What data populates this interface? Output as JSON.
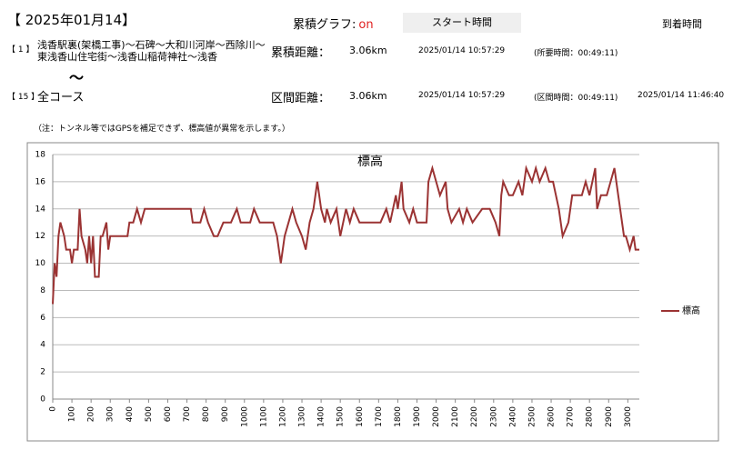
{
  "header": {
    "date": "【 2025年01月14】",
    "graph_label": "累積グラフ:",
    "graph_state": "on",
    "start_label": "スタート時間",
    "arrival_label": "到着時間"
  },
  "rows": [
    {
      "index": "【 1 】",
      "route": "浅香駅裏(架橋工事)～石碑～大和川河岸～西除川～東浅香山住宅街～浅香山稲荷神社～浅香",
      "distance_label": "累積距離：",
      "distance": "3.06km",
      "start": "2025/01/14 10:57:29",
      "duration": "(所要時間：00:49:11)"
    },
    {
      "index": "【 15 】",
      "route": "全コース",
      "distance_label": "区間距離：",
      "distance": "3.06km",
      "start": "2025/01/14 10:57:29",
      "duration": "(区間時間：00:49:11)",
      "arrival": "2025/01/14 11:46:40"
    }
  ],
  "separator": "～",
  "note": "（注：トンネル等ではGPSを補足できず、標高値が異常を示します。）",
  "chart_data": {
    "type": "line",
    "title": "標高",
    "x": [
      0,
      10,
      20,
      30,
      40,
      60,
      70,
      90,
      100,
      110,
      130,
      140,
      150,
      170,
      180,
      190,
      200,
      210,
      220,
      240,
      250,
      260,
      280,
      290,
      300,
      390,
      400,
      420,
      440,
      460,
      480,
      510,
      580,
      670,
      720,
      730,
      770,
      790,
      810,
      840,
      860,
      890,
      930,
      960,
      980,
      1030,
      1050,
      1080,
      1120,
      1150,
      1170,
      1190,
      1210,
      1230,
      1250,
      1270,
      1300,
      1320,
      1340,
      1360,
      1380,
      1400,
      1420,
      1430,
      1450,
      1480,
      1500,
      1530,
      1550,
      1570,
      1600,
      1710,
      1740,
      1760,
      1790,
      1800,
      1820,
      1830,
      1860,
      1880,
      1900,
      1950,
      1960,
      1980,
      2000,
      2020,
      2050,
      2060,
      2080,
      2120,
      2140,
      2160,
      2190,
      2240,
      2280,
      2310,
      2330,
      2340,
      2350,
      2380,
      2400,
      2430,
      2450,
      2470,
      2500,
      2520,
      2540,
      2570,
      2590,
      2610,
      2640,
      2660,
      2690,
      2710,
      2760,
      2780,
      2800,
      2830,
      2840,
      2860,
      2890,
      2910,
      2930,
      2950,
      2970,
      2980,
      2990,
      3010,
      3030,
      3040,
      3060
    ],
    "series": [
      {
        "name": "標高",
        "color": "#9b3333",
        "values": [
          7,
          10,
          9,
          12,
          13,
          12,
          11,
          11,
          10,
          11,
          11,
          14,
          12,
          11,
          10,
          12,
          10,
          12,
          9,
          9,
          12,
          12,
          13,
          11,
          12,
          12,
          13,
          13,
          14,
          13,
          14,
          14,
          14,
          14,
          14,
          13,
          13,
          14,
          13,
          12,
          12,
          13,
          13,
          14,
          13,
          13,
          14,
          13,
          13,
          13,
          12,
          10,
          12,
          13,
          14,
          13,
          12,
          11,
          13,
          14,
          16,
          14,
          13,
          14,
          13,
          14,
          12,
          14,
          13,
          14,
          13,
          13,
          14,
          13,
          15,
          14,
          16,
          14,
          13,
          14,
          13,
          13,
          16,
          17,
          16,
          15,
          16,
          14,
          13,
          14,
          13,
          14,
          13,
          14,
          14,
          13,
          12,
          15,
          16,
          15,
          15,
          16,
          15,
          17,
          16,
          17,
          16,
          17,
          16,
          16,
          14,
          12,
          13,
          15,
          15,
          16,
          15,
          17,
          14,
          15,
          15,
          16,
          17,
          15,
          13,
          12,
          12,
          11,
          12,
          11,
          11
        ]
      }
    ],
    "xlim": [
      0,
      3060
    ],
    "ylim": [
      0,
      18
    ],
    "xticks": [
      0,
      100,
      200,
      300,
      400,
      500,
      600,
      700,
      800,
      900,
      1000,
      1100,
      1200,
      1300,
      1400,
      1500,
      1600,
      1700,
      1800,
      1900,
      2000,
      2100,
      2200,
      2300,
      2400,
      2500,
      2600,
      2700,
      2800,
      2900,
      3000
    ],
    "yticks": [
      0,
      2,
      4,
      6,
      8,
      10,
      12,
      14,
      16,
      18
    ],
    "grid": true,
    "legend": "right"
  }
}
